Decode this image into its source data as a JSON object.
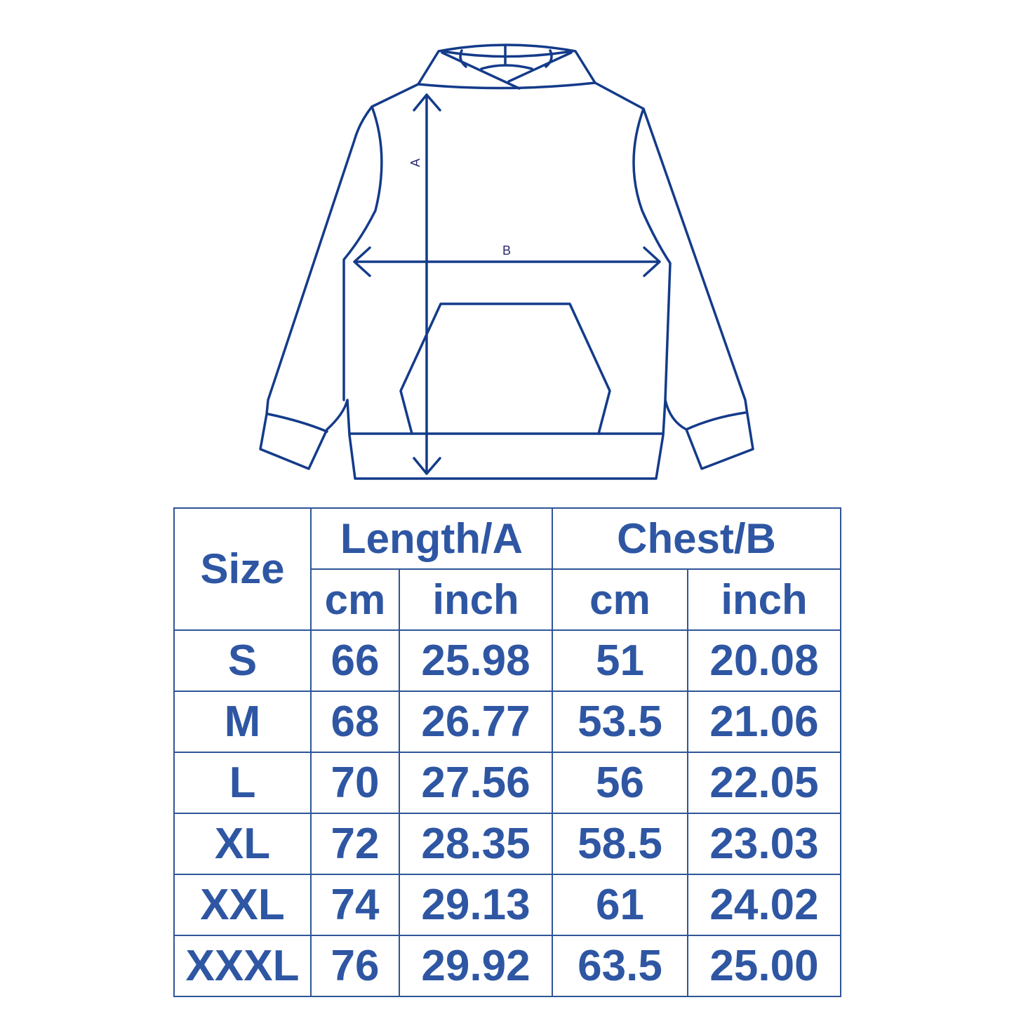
{
  "diagram": {
    "label_a": "A",
    "label_b": "B",
    "line_color": "#143b8a"
  },
  "table": {
    "text_color": "#2e56a3",
    "headers": {
      "size": "Size",
      "length": "Length/A",
      "chest": "Chest/B",
      "length_cm": "cm",
      "length_inch": "inch",
      "chest_cm": "cm",
      "chest_inch": "inch"
    },
    "rows": [
      {
        "size": "S",
        "length_cm": "66",
        "length_inch": "25.98",
        "chest_cm": "51",
        "chest_inch": "20.08"
      },
      {
        "size": "M",
        "length_cm": "68",
        "length_inch": "26.77",
        "chest_cm": "53.5",
        "chest_inch": "21.06"
      },
      {
        "size": "L",
        "length_cm": "70",
        "length_inch": "27.56",
        "chest_cm": "56",
        "chest_inch": "22.05"
      },
      {
        "size": "XL",
        "length_cm": "72",
        "length_inch": "28.35",
        "chest_cm": "58.5",
        "chest_inch": "23.03"
      },
      {
        "size": "XXL",
        "length_cm": "74",
        "length_inch": "29.13",
        "chest_cm": "61",
        "chest_inch": "24.02"
      },
      {
        "size": "XXXL",
        "length_cm": "76",
        "length_inch": "29.92",
        "chest_cm": "63.5",
        "chest_inch": "25.00"
      }
    ]
  }
}
